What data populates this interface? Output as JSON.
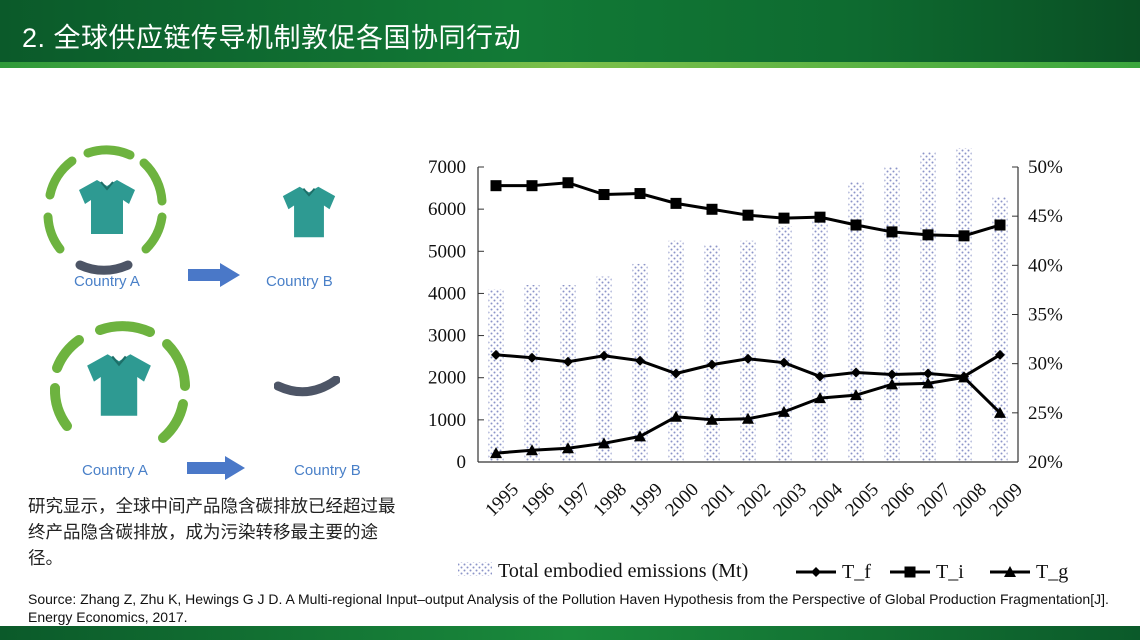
{
  "header": {
    "title": "2. 全球供应链传导机制敦促各国协同行动"
  },
  "illustration": {
    "rows": [
      {
        "from_label": "Country A",
        "to_label": "Country B"
      },
      {
        "from_label": "Country A",
        "to_label": "Country B"
      }
    ],
    "colors": {
      "shirt": "#2e9a92",
      "ring": "#6db33f",
      "arc": "#4d5566",
      "arrow": "#4a78c8"
    }
  },
  "description": "研究显示，全球中间产品隐含碳排放已经超过最终产品隐含碳排放，成为污染转移最主要的途径。",
  "source": "Source: Zhang Z, Zhu K, Hewings G J D. A Multi-regional Input–output Analysis of the Pollution Haven Hypothesis from the Perspective of Global Production Fragmentation[J]. Energy Economics, 2017.",
  "chart_data": {
    "type": "bar",
    "categories": [
      "1995",
      "1996",
      "1997",
      "1998",
      "1999",
      "2000",
      "2001",
      "2002",
      "2003",
      "2004",
      "2005",
      "2006",
      "2007",
      "2008",
      "2009"
    ],
    "left_axis": {
      "ticks": [
        0,
        1000,
        2000,
        3000,
        4000,
        5000,
        6000,
        7000
      ],
      "ylim": [
        0,
        7000
      ]
    },
    "right_axis": {
      "ticks": [
        "20%",
        "25%",
        "30%",
        "35%",
        "40%",
        "45%",
        "50%"
      ],
      "ylim": [
        20,
        50
      ]
    },
    "bars": {
      "name": "Total embodied emissions (Mt)",
      "axis": "left",
      "values": [
        4100,
        4200,
        4200,
        4400,
        4700,
        5250,
        5150,
        5250,
        5600,
        5750,
        6650,
        7000,
        7350,
        7450,
        6300
      ]
    },
    "series": [
      {
        "name": "T_f",
        "axis": "right",
        "marker": "diamond",
        "values": [
          30.9,
          30.6,
          30.2,
          30.8,
          30.3,
          29.0,
          29.9,
          30.5,
          30.1,
          28.7,
          29.1,
          28.9,
          29.0,
          28.7,
          30.9
        ]
      },
      {
        "name": "T_i",
        "axis": "right",
        "marker": "square",
        "values": [
          48.1,
          48.1,
          48.4,
          47.2,
          47.3,
          46.3,
          45.7,
          45.1,
          44.8,
          44.9,
          44.1,
          43.4,
          43.1,
          43.0,
          44.1
        ]
      },
      {
        "name": "T_g",
        "axis": "right",
        "marker": "triangle",
        "values": [
          20.9,
          21.2,
          21.4,
          21.9,
          22.6,
          24.6,
          24.3,
          24.4,
          25.1,
          26.5,
          26.8,
          27.9,
          28.0,
          28.6,
          25.0
        ]
      }
    ],
    "legend_position": "bottom"
  }
}
